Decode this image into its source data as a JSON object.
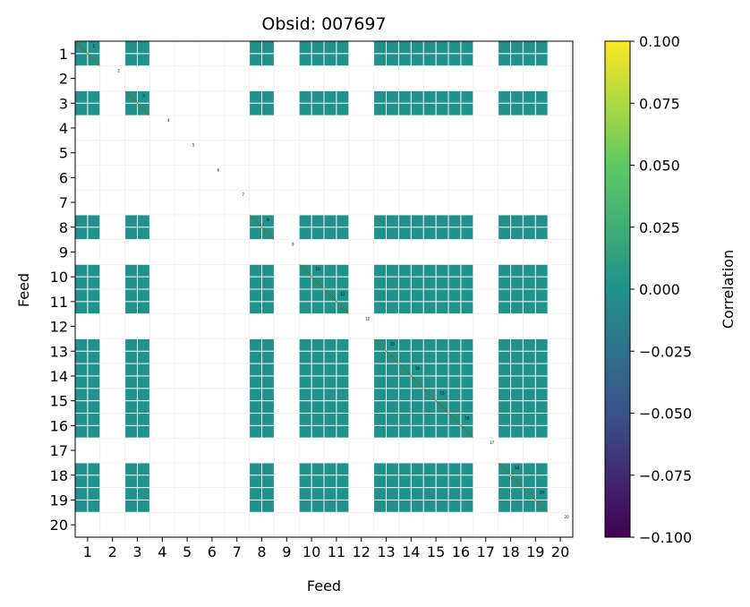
{
  "chart_data": {
    "type": "heatmap",
    "title": "Obsid: 007697",
    "xlabel": "Feed",
    "ylabel": "Feed",
    "feeds": [
      1,
      2,
      3,
      4,
      5,
      6,
      7,
      8,
      9,
      10,
      11,
      12,
      13,
      14,
      15,
      16,
      17,
      18,
      19,
      20
    ],
    "xtick_labels": [
      "1",
      "2",
      "3",
      "4",
      "5",
      "6",
      "7",
      "8",
      "9",
      "10",
      "11",
      "12",
      "13",
      "14",
      "15",
      "16",
      "17",
      "18",
      "19",
      "20"
    ],
    "ytick_labels": [
      "1",
      "2",
      "3",
      "4",
      "5",
      "6",
      "7",
      "8",
      "9",
      "10",
      "11",
      "12",
      "13",
      "14",
      "15",
      "16",
      "17",
      "18",
      "19",
      "20"
    ],
    "active_feeds": [
      1,
      3,
      8,
      10,
      11,
      13,
      14,
      15,
      16,
      18,
      19
    ],
    "feed_value_default": 0.0,
    "diagonal_label_feeds": [
      1,
      2,
      3,
      4,
      5,
      6,
      7,
      8,
      9,
      10,
      11,
      12,
      13,
      14,
      15,
      16,
      17,
      18,
      19,
      20
    ],
    "grid": true,
    "colorbar": {
      "label": "Correlation",
      "colormap": "viridis",
      "vmin": -0.1,
      "vmax": 0.1,
      "tick_values": [
        -0.1,
        -0.075,
        -0.05,
        -0.025,
        0.0,
        0.025,
        0.05,
        0.075,
        0.1
      ],
      "tick_labels": [
        "−0.100",
        "−0.075",
        "−0.050",
        "−0.025",
        "0.000",
        "0.025",
        "0.050",
        "0.075",
        "0.100"
      ]
    },
    "colors": {
      "cell": "#21918c",
      "diagonal_line": "#fde725",
      "grid": "#e6e6e6",
      "viridis_stops": [
        "#440154",
        "#3b528b",
        "#21918c",
        "#5ec962",
        "#fde725"
      ]
    }
  }
}
